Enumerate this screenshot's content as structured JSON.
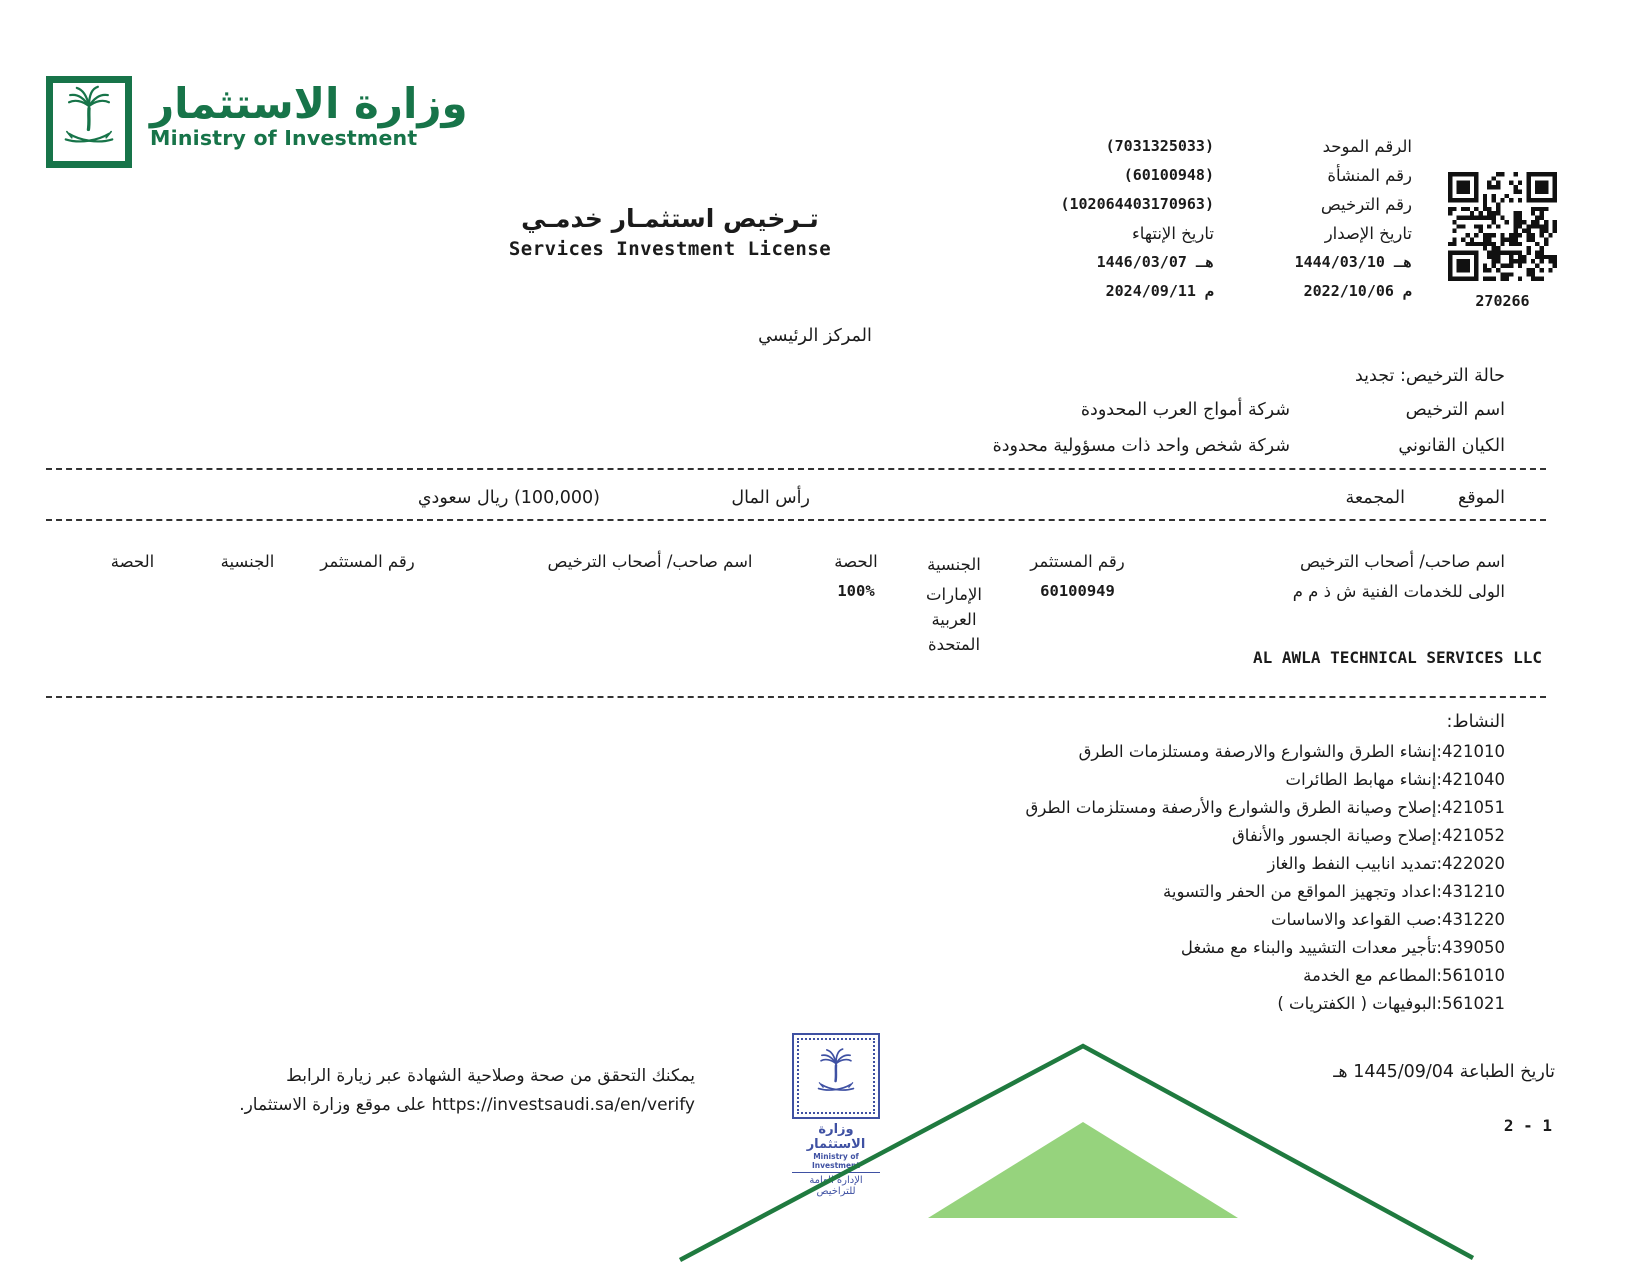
{
  "colors": {
    "green": "#177449",
    "mountain-dark": "#1f7a3f",
    "mountain-light": "#96d37d",
    "stamp-blue": "#3f51a3",
    "ink": "#1b1b1b"
  },
  "brand": {
    "logo_ar": "وزارة الاستثمار",
    "logo_en": "Ministry of Investment"
  },
  "title": {
    "ar": "تـرخيص استثمـار خدمـي",
    "en": "Services Investment License"
  },
  "info": {
    "unified_label": "الرقم الموحد",
    "unified_value": "(7031325033)",
    "entity_label": "رقم المنشأة",
    "entity_value": "(60100948)",
    "license_label": "رقم الترخيص",
    "license_value": "(102064403170963)",
    "issue_label": "تاريخ الإصدار",
    "expiry_label": "تاريخ الإنتهاء",
    "issue_hijri": "1444/03/10 هـ",
    "expiry_hijri": "1446/03/07 هـ",
    "issue_greg": "2022/10/06 م",
    "expiry_greg": "2024/09/11 م"
  },
  "qr": {
    "label": "270266"
  },
  "center_heading": "المركز الرئيسي",
  "fields": {
    "status_label": "حالة الترخيص:",
    "status_value": "تجديد",
    "license_name_label": "اسم الترخيص",
    "license_name_value": "شركة أمواج العرب المحدودة",
    "legal_entity_label": "الكيان القانوني",
    "legal_entity_value": "شركة شخص واحد ذات مسؤولية محدودة",
    "location_label": "الموقع",
    "location_value": "المجمعة",
    "capital_label": "رأس المال",
    "capital_value": "(100,000) ريال سعودي"
  },
  "table": {
    "col_owner": "اسم صاحب/ أصحاب الترخيص",
    "col_investor_no": "رقم المستثمر",
    "col_nationality": "الجنسية",
    "col_share": "الحصة",
    "owner_ar": "الولى للخدمات الفنية ش ذ م م",
    "owner_en": "AL AWLA TECHNICAL SERVICES LLC",
    "investor_no": "60100949",
    "nationality": "الإمارات العربية المتحدة",
    "share": "100%"
  },
  "activities_label": "النشاط:",
  "activities": [
    "421010:إنشاء الطرق والشوارع والارصفة ومستلزمات الطرق",
    "421040:إنشاء مهابط الطائرات",
    "421051:إصلاح وصيانة الطرق والشوارع والأرصفة ومستلزمات الطرق",
    "421052:إصلاح وصيانة الجسور والأنفاق",
    "422020:تمديد انابيب النفط والغاز",
    "431210:اعداد وتجهيز المواقع من الحفر والتسوية",
    "431220:صب القواعد والاساسات",
    "439050:تأجير معدات التشييد والبناء مع مشغل",
    "561010:المطاعم مع الخدمة",
    "561021:البوفيهات ( الكفتريات )"
  ],
  "footer": {
    "print_date": "تاريخ الطباعة 1445/09/04 هـ",
    "page": "2 - 1",
    "verify_line1": "يمكنك التحقق من صحة وصلاحية الشهادة عبر زيارة الرابط",
    "verify_line2": "https://investsaudi.sa/en/verify على موقع وزارة الاستثمار.",
    "stamp_ar": "وزارة الاستثمار",
    "stamp_en": "Ministry of Investment",
    "stamp_dept": "الإدارة العامة للتراخيص"
  }
}
